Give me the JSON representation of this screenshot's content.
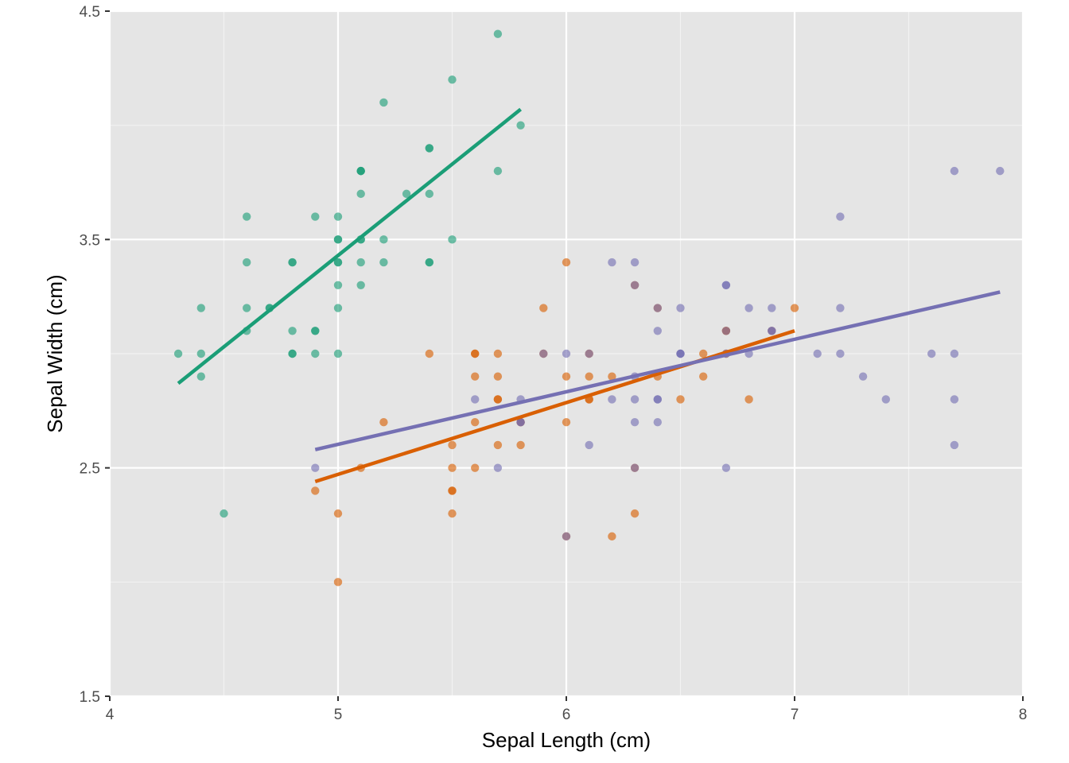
{
  "chart_data": {
    "type": "scatter",
    "title": "",
    "xlabel": "Sepal Length (cm)",
    "ylabel": "Sepal Width (cm)",
    "xlim": [
      4,
      8
    ],
    "ylim": [
      1.5,
      4.5
    ],
    "x_ticks": [
      4,
      5,
      6,
      7,
      8
    ],
    "x_tick_labels": [
      "4",
      "5",
      "6",
      "7",
      "8"
    ],
    "y_ticks": [
      1.5,
      2.5,
      3.5,
      4.5
    ],
    "y_tick_labels": [
      "1.5",
      "2.5",
      "3.5",
      "4.5"
    ],
    "grid": true,
    "legend": "none",
    "background": "#e5e5e5",
    "series": [
      {
        "color": "#1b9e77",
        "points": [
          [
            4.3,
            3.0
          ],
          [
            4.4,
            2.9
          ],
          [
            4.4,
            3.0
          ],
          [
            4.4,
            3.2
          ],
          [
            4.5,
            2.3
          ],
          [
            4.6,
            3.1
          ],
          [
            4.6,
            3.2
          ],
          [
            4.6,
            3.4
          ],
          [
            4.6,
            3.6
          ],
          [
            4.7,
            3.2
          ],
          [
            4.7,
            3.2
          ],
          [
            4.8,
            3.0
          ],
          [
            4.8,
            3.0
          ],
          [
            4.8,
            3.1
          ],
          [
            4.8,
            3.4
          ],
          [
            4.8,
            3.4
          ],
          [
            4.9,
            3.0
          ],
          [
            4.9,
            3.1
          ],
          [
            4.9,
            3.1
          ],
          [
            4.9,
            3.6
          ],
          [
            5.0,
            3.0
          ],
          [
            5.0,
            3.2
          ],
          [
            5.0,
            3.3
          ],
          [
            5.0,
            3.4
          ],
          [
            5.0,
            3.4
          ],
          [
            5.0,
            3.5
          ],
          [
            5.0,
            3.5
          ],
          [
            5.0,
            3.6
          ],
          [
            5.1,
            3.3
          ],
          [
            5.1,
            3.4
          ],
          [
            5.1,
            3.5
          ],
          [
            5.1,
            3.5
          ],
          [
            5.1,
            3.7
          ],
          [
            5.1,
            3.8
          ],
          [
            5.1,
            3.8
          ],
          [
            5.1,
            3.8
          ],
          [
            5.2,
            3.4
          ],
          [
            5.2,
            3.5
          ],
          [
            5.2,
            4.1
          ],
          [
            5.3,
            3.7
          ],
          [
            5.4,
            3.4
          ],
          [
            5.4,
            3.4
          ],
          [
            5.4,
            3.7
          ],
          [
            5.4,
            3.9
          ],
          [
            5.4,
            3.9
          ],
          [
            5.5,
            3.5
          ],
          [
            5.5,
            4.2
          ],
          [
            5.7,
            3.8
          ],
          [
            5.7,
            4.4
          ],
          [
            5.8,
            4.0
          ]
        ],
        "fit": {
          "x": [
            4.3,
            5.8
          ],
          "y": [
            2.87,
            4.07
          ]
        }
      },
      {
        "color": "#d95f02",
        "points": [
          [
            4.9,
            2.4
          ],
          [
            5.0,
            2.0
          ],
          [
            5.0,
            2.3
          ],
          [
            5.1,
            2.5
          ],
          [
            5.2,
            2.7
          ],
          [
            5.4,
            3.0
          ],
          [
            5.5,
            2.3
          ],
          [
            5.5,
            2.4
          ],
          [
            5.5,
            2.4
          ],
          [
            5.5,
            2.5
          ],
          [
            5.5,
            2.6
          ],
          [
            5.6,
            2.5
          ],
          [
            5.6,
            2.7
          ],
          [
            5.6,
            2.9
          ],
          [
            5.6,
            3.0
          ],
          [
            5.6,
            3.0
          ],
          [
            5.7,
            2.6
          ],
          [
            5.7,
            2.8
          ],
          [
            5.7,
            2.8
          ],
          [
            5.7,
            2.9
          ],
          [
            5.7,
            3.0
          ],
          [
            5.8,
            2.6
          ],
          [
            5.8,
            2.7
          ],
          [
            5.8,
            2.7
          ],
          [
            5.9,
            3.0
          ],
          [
            5.9,
            3.2
          ],
          [
            6.0,
            2.2
          ],
          [
            6.0,
            2.7
          ],
          [
            6.0,
            2.9
          ],
          [
            6.0,
            3.4
          ],
          [
            6.1,
            2.8
          ],
          [
            6.1,
            2.8
          ],
          [
            6.1,
            2.9
          ],
          [
            6.1,
            3.0
          ],
          [
            6.2,
            2.2
          ],
          [
            6.2,
            2.9
          ],
          [
            6.3,
            2.3
          ],
          [
            6.3,
            2.5
          ],
          [
            6.3,
            3.3
          ],
          [
            6.4,
            2.9
          ],
          [
            6.4,
            3.2
          ],
          [
            6.5,
            2.8
          ],
          [
            6.6,
            2.9
          ],
          [
            6.6,
            3.0
          ],
          [
            6.7,
            3.0
          ],
          [
            6.7,
            3.1
          ],
          [
            6.7,
            3.1
          ],
          [
            6.8,
            2.8
          ],
          [
            6.9,
            3.1
          ],
          [
            7.0,
            3.2
          ]
        ],
        "fit": {
          "x": [
            4.9,
            7.0
          ],
          "y": [
            2.44,
            3.1
          ]
        }
      },
      {
        "color": "#7570b3",
        "points": [
          [
            4.9,
            2.5
          ],
          [
            5.6,
            2.8
          ],
          [
            5.7,
            2.5
          ],
          [
            5.8,
            2.7
          ],
          [
            5.8,
            2.7
          ],
          [
            5.8,
            2.8
          ],
          [
            5.9,
            3.0
          ],
          [
            6.0,
            2.2
          ],
          [
            6.0,
            3.0
          ],
          [
            6.1,
            2.6
          ],
          [
            6.1,
            3.0
          ],
          [
            6.2,
            2.8
          ],
          [
            6.2,
            3.4
          ],
          [
            6.3,
            2.5
          ],
          [
            6.3,
            2.7
          ],
          [
            6.3,
            2.8
          ],
          [
            6.3,
            2.9
          ],
          [
            6.3,
            3.3
          ],
          [
            6.3,
            3.4
          ],
          [
            6.4,
            2.7
          ],
          [
            6.4,
            2.8
          ],
          [
            6.4,
            2.8
          ],
          [
            6.4,
            3.1
          ],
          [
            6.4,
            3.2
          ],
          [
            6.5,
            3.0
          ],
          [
            6.5,
            3.0
          ],
          [
            6.5,
            3.0
          ],
          [
            6.5,
            3.2
          ],
          [
            6.7,
            2.5
          ],
          [
            6.7,
            3.0
          ],
          [
            6.7,
            3.1
          ],
          [
            6.7,
            3.3
          ],
          [
            6.7,
            3.3
          ],
          [
            6.8,
            3.0
          ],
          [
            6.8,
            3.2
          ],
          [
            6.9,
            3.1
          ],
          [
            6.9,
            3.1
          ],
          [
            6.9,
            3.2
          ],
          [
            7.1,
            3.0
          ],
          [
            7.2,
            3.0
          ],
          [
            7.2,
            3.2
          ],
          [
            7.2,
            3.6
          ],
          [
            7.3,
            2.9
          ],
          [
            7.4,
            2.8
          ],
          [
            7.6,
            3.0
          ],
          [
            7.7,
            2.6
          ],
          [
            7.7,
            2.8
          ],
          [
            7.7,
            3.0
          ],
          [
            7.7,
            3.8
          ],
          [
            7.9,
            3.8
          ]
        ],
        "fit": {
          "x": [
            4.9,
            7.9
          ],
          "y": [
            2.58,
            3.27
          ]
        }
      }
    ]
  }
}
